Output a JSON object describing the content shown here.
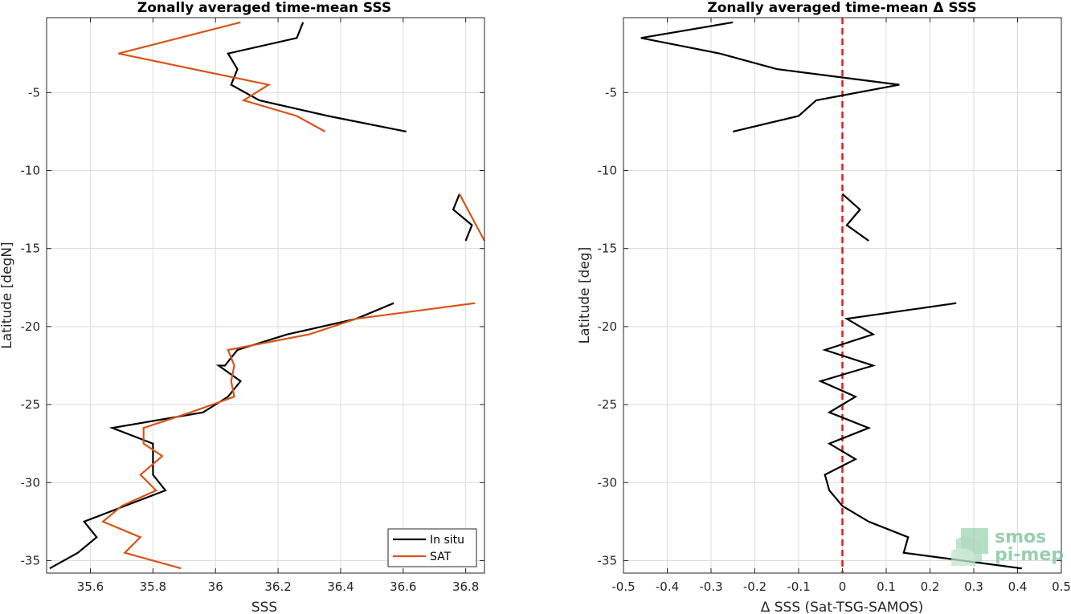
{
  "colors": {
    "insitu": "#000000",
    "sat": "#D95319",
    "zero_line": "#E41A1C",
    "grid": "#DCDCDC",
    "axis": "#262626",
    "logo": "#7FC49A"
  },
  "logo": {
    "line1": "smos",
    "line2": "pi-mep",
    "icon": "waves-logo-icon"
  },
  "chart_data": [
    {
      "type": "line",
      "title": "Zonally averaged time-mean SSS",
      "xlabel": "SSS",
      "ylabel": "Latitude [degN]",
      "xlim": [
        35.46,
        36.86
      ],
      "ylim": [
        -35.8,
        -0.2
      ],
      "grid": true,
      "legend_placement": "bottom-right",
      "xticks": [
        35.6,
        35.8,
        36,
        36.2,
        36.4,
        36.6,
        36.8
      ],
      "xtick_labels": [
        "35.6",
        "35.8",
        "36",
        "36.2",
        "36.4",
        "36.6",
        "36.8"
      ],
      "yticks": [
        -5,
        -10,
        -15,
        -20,
        -25,
        -30,
        -35
      ],
      "ytick_labels": [
        "-5",
        "-10",
        "-15",
        "-20",
        "-25",
        "-30",
        "-35"
      ],
      "series": [
        {
          "name": "In situ",
          "segments": [
            [
              [
                36.28,
                -0.5
              ],
              [
                36.26,
                -1.5
              ],
              [
                36.04,
                -2.5
              ],
              [
                36.07,
                -3.5
              ],
              [
                36.05,
                -4.5
              ],
              [
                36.14,
                -5.5
              ],
              [
                36.36,
                -6.5
              ],
              [
                36.61,
                -7.5
              ]
            ],
            [
              [
                36.78,
                -11.5
              ],
              [
                36.76,
                -12.5
              ],
              [
                36.82,
                -13.5
              ],
              [
                36.8,
                -14.5
              ]
            ],
            [
              [
                36.57,
                -18.5
              ],
              [
                36.45,
                -19.5
              ],
              [
                36.23,
                -20.5
              ],
              [
                36.07,
                -21.5
              ],
              [
                36.03,
                -22.5
              ],
              [
                36.01,
                -22.5
              ],
              [
                36.08,
                -23.5
              ],
              [
                36.04,
                -24.5
              ],
              [
                35.96,
                -25.5
              ],
              [
                35.67,
                -26.5
              ],
              [
                35.8,
                -27.5
              ],
              [
                35.8,
                -28.5
              ],
              [
                35.8,
                -29.5
              ],
              [
                35.84,
                -30.5
              ],
              [
                35.71,
                -31.5
              ],
              [
                35.58,
                -32.5
              ],
              [
                35.62,
                -33.5
              ],
              [
                35.56,
                -34.5
              ],
              [
                35.47,
                -35.5
              ]
            ]
          ]
        },
        {
          "name": "SAT",
          "segments": [
            [
              [
                36.08,
                -0.5
              ],
              [
                35.69,
                -2.5
              ],
              [
                36.17,
                -4.5
              ],
              [
                36.09,
                -5.5
              ],
              [
                36.26,
                -6.5
              ],
              [
                36.35,
                -7.5
              ]
            ],
            [
              [
                36.78,
                -11.5
              ],
              [
                36.82,
                -13.0
              ],
              [
                36.86,
                -14.5
              ]
            ],
            [
              [
                36.83,
                -18.5
              ],
              [
                36.45,
                -19.5
              ],
              [
                36.3,
                -20.5
              ],
              [
                36.04,
                -21.5
              ],
              [
                36.06,
                -22.5
              ],
              [
                36.05,
                -23.5
              ],
              [
                36.06,
                -24.5
              ],
              [
                35.92,
                -25.5
              ],
              [
                35.77,
                -26.5
              ],
              [
                35.77,
                -27.5
              ],
              [
                35.83,
                -28.3
              ],
              [
                35.76,
                -29.5
              ],
              [
                35.81,
                -30.5
              ],
              [
                35.7,
                -31.5
              ],
              [
                35.64,
                -32.5
              ],
              [
                35.76,
                -33.5
              ],
              [
                35.71,
                -34.5
              ],
              [
                35.89,
                -35.5
              ]
            ]
          ]
        }
      ]
    },
    {
      "type": "line",
      "title": "Zonally averaged time-mean Δ SSS",
      "xlabel": "Δ SSS (Sat-TSG-SAMOS)",
      "ylabel": "Latitude [deg]",
      "xlim": [
        -0.5,
        0.5
      ],
      "ylim": [
        -35.8,
        -0.2
      ],
      "grid": true,
      "zero_line": true,
      "xticks": [
        -0.5,
        -0.4,
        -0.3,
        -0.2,
        -0.1,
        0,
        0.1,
        0.2,
        0.3,
        0.4,
        0.5
      ],
      "xtick_labels": [
        "-0.5",
        "-0.4",
        "-0.3",
        "-0.2",
        "-0.1",
        "0",
        "0.1",
        "0.2",
        "0.3",
        "0.4",
        "0.5"
      ],
      "yticks": [
        -5,
        -10,
        -15,
        -20,
        -25,
        -30,
        -35
      ],
      "ytick_labels": [
        "-5",
        "-10",
        "-15",
        "-20",
        "-25",
        "-30",
        "-35"
      ],
      "series": [
        {
          "segments": [
            [
              [
                -0.25,
                -0.5
              ],
              [
                -0.46,
                -1.5
              ],
              [
                -0.28,
                -2.5
              ],
              [
                -0.15,
                -3.5
              ],
              [
                0.13,
                -4.5
              ],
              [
                -0.06,
                -5.5
              ],
              [
                -0.1,
                -6.5
              ],
              [
                -0.25,
                -7.5
              ]
            ],
            [
              [
                0.0,
                -11.5
              ],
              [
                0.04,
                -12.5
              ],
              [
                0.01,
                -13.5
              ],
              [
                0.06,
                -14.5
              ]
            ],
            [
              [
                0.26,
                -18.5
              ],
              [
                0.01,
                -19.5
              ],
              [
                0.07,
                -20.5
              ],
              [
                -0.04,
                -21.5
              ],
              [
                0.07,
                -22.5
              ],
              [
                -0.05,
                -23.5
              ],
              [
                0.03,
                -24.5
              ],
              [
                -0.03,
                -25.5
              ],
              [
                0.06,
                -26.5
              ],
              [
                -0.03,
                -27.5
              ],
              [
                0.03,
                -28.5
              ],
              [
                -0.04,
                -29.5
              ],
              [
                -0.03,
                -30.5
              ],
              [
                0.0,
                -31.5
              ],
              [
                0.06,
                -32.5
              ],
              [
                0.15,
                -33.5
              ],
              [
                0.14,
                -34.5
              ],
              [
                0.41,
                -35.5
              ]
            ]
          ]
        }
      ]
    }
  ]
}
